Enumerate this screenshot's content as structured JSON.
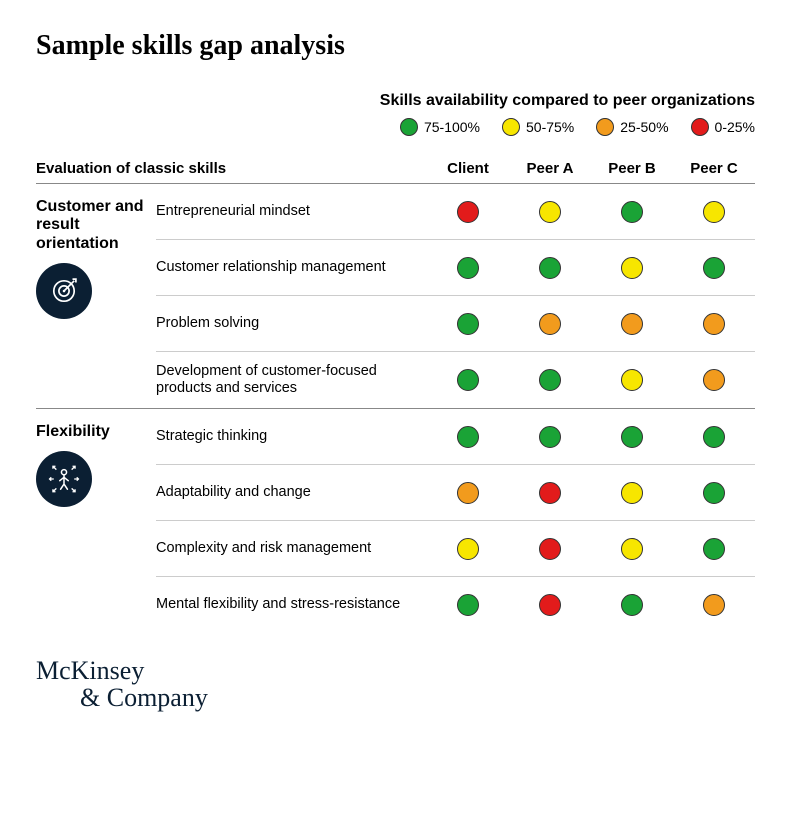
{
  "title": "Sample skills gap analysis",
  "legend": {
    "title": "Skills availability compared to peer organizations",
    "items": [
      {
        "label": "75-100%",
        "color": "#1aa336"
      },
      {
        "label": "50-75%",
        "color": "#f7e600"
      },
      {
        "label": "25-50%",
        "color": "#f29b1d"
      },
      {
        "label": "0-25%",
        "color": "#e21b1b"
      }
    ]
  },
  "colors": {
    "dot_border": "#333333",
    "icon_bg": "#0b1f33",
    "row_divider": "#cccccc",
    "section_divider": "#888888",
    "background": "#ffffff",
    "text": "#000000",
    "logo": "#0b1f33"
  },
  "typography": {
    "title_fontsize": 28,
    "legend_title_fontsize": 16,
    "legend_item_fontsize": 14,
    "header_fontsize": 15,
    "group_name_fontsize": 16,
    "row_fontsize": 14.5,
    "logo_fontsize": 26
  },
  "table": {
    "header_left": "Evaluation of classic skills",
    "orgs": [
      "Client",
      "Peer A",
      "Peer B",
      "Peer C"
    ],
    "groups": [
      {
        "name": "Customer and result orientation",
        "icon": "target-icon",
        "rows": [
          {
            "skill": "Entrepreneurial mindset",
            "values": [
              "#e21b1b",
              "#f7e600",
              "#1aa336",
              "#f7e600"
            ]
          },
          {
            "skill": "Customer relationship management",
            "values": [
              "#1aa336",
              "#1aa336",
              "#f7e600",
              "#1aa336"
            ]
          },
          {
            "skill": "Problem solving",
            "values": [
              "#1aa336",
              "#f29b1d",
              "#f29b1d",
              "#f29b1d"
            ]
          },
          {
            "skill": "Development of customer-focused products and services",
            "values": [
              "#1aa336",
              "#1aa336",
              "#f7e600",
              "#f29b1d"
            ]
          }
        ]
      },
      {
        "name": "Flexibility",
        "icon": "flexibility-icon",
        "rows": [
          {
            "skill": "Strategic thinking",
            "values": [
              "#1aa336",
              "#1aa336",
              "#1aa336",
              "#1aa336"
            ]
          },
          {
            "skill": "Adaptability and change",
            "values": [
              "#f29b1d",
              "#e21b1b",
              "#f7e600",
              "#1aa336"
            ]
          },
          {
            "skill": "Complexity and risk management",
            "values": [
              "#f7e600",
              "#e21b1b",
              "#f7e600",
              "#1aa336"
            ]
          },
          {
            "skill": "Mental flexibility and stress-resistance",
            "values": [
              "#1aa336",
              "#e21b1b",
              "#1aa336",
              "#f29b1d"
            ]
          }
        ]
      }
    ]
  },
  "logo": {
    "line1": "McKinsey",
    "line2": "& Company"
  }
}
